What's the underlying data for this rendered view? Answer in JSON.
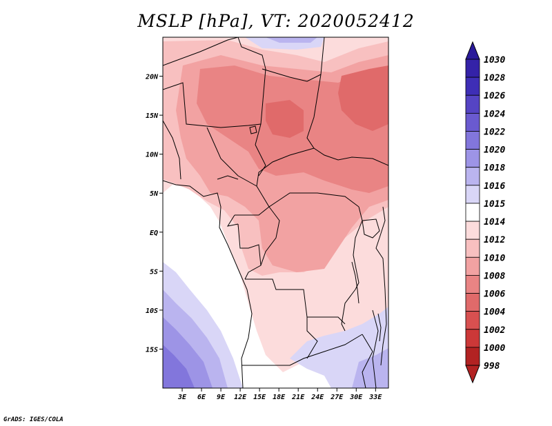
{
  "title": "MSLP [hPa], VT: 2020052412",
  "credit": "GrADS: IGES/COLA",
  "map": {
    "lon_range": [
      0,
      35
    ],
    "lat_range": [
      -20,
      25
    ],
    "lat_ticks": [
      {
        "value": 20,
        "label": "20N"
      },
      {
        "value": 15,
        "label": "15N"
      },
      {
        "value": 10,
        "label": "10N"
      },
      {
        "value": 5,
        "label": "5N"
      },
      {
        "value": 0,
        "label": "EQ"
      },
      {
        "value": -5,
        "label": "5S"
      },
      {
        "value": -10,
        "label": "10S"
      },
      {
        "value": -15,
        "label": "15S"
      }
    ],
    "lon_ticks": [
      {
        "value": 3,
        "label": "3E"
      },
      {
        "value": 6,
        "label": "6E"
      },
      {
        "value": 9,
        "label": "9E"
      },
      {
        "value": 12,
        "label": "12E"
      },
      {
        "value": 15,
        "label": "15E"
      },
      {
        "value": 18,
        "label": "18E"
      },
      {
        "value": 21,
        "label": "21E"
      },
      {
        "value": 24,
        "label": "24E"
      },
      {
        "value": 27,
        "label": "27E"
      },
      {
        "value": 30,
        "label": "30E"
      },
      {
        "value": 33,
        "label": "33E"
      }
    ]
  },
  "colorbar": {
    "levels": [
      {
        "label": "1030",
        "color": "#2a1a9a"
      },
      {
        "label": "1028",
        "color": "#3422a8"
      },
      {
        "label": "1026",
        "color": "#3e2eb6"
      },
      {
        "label": "1024",
        "color": "#5544c4"
      },
      {
        "label": "1022",
        "color": "#6a5ad0"
      },
      {
        "label": "1020",
        "color": "#8276dc"
      },
      {
        "label": "1018",
        "color": "#9d94e6"
      },
      {
        "label": "1016",
        "color": "#bab4ef"
      },
      {
        "label": "1015",
        "color": "#d9d6f7"
      },
      {
        "label": "1014",
        "color": "#ffffff"
      },
      {
        "label": "1012",
        "color": "#fcdcdc"
      },
      {
        "label": "1010",
        "color": "#f8c0c0"
      },
      {
        "label": "1008",
        "color": "#f2a2a2"
      },
      {
        "label": "1006",
        "color": "#e98484"
      },
      {
        "label": "1004",
        "color": "#e06a6a"
      },
      {
        "label": "1002",
        "color": "#d85050"
      },
      {
        "label": "1000",
        "color": "#cc3838"
      },
      {
        "label": "998",
        "color": "#b22222"
      }
    ],
    "top_arrow_color": "#2a1a9a",
    "bottom_arrow_color": "#b22222"
  }
}
